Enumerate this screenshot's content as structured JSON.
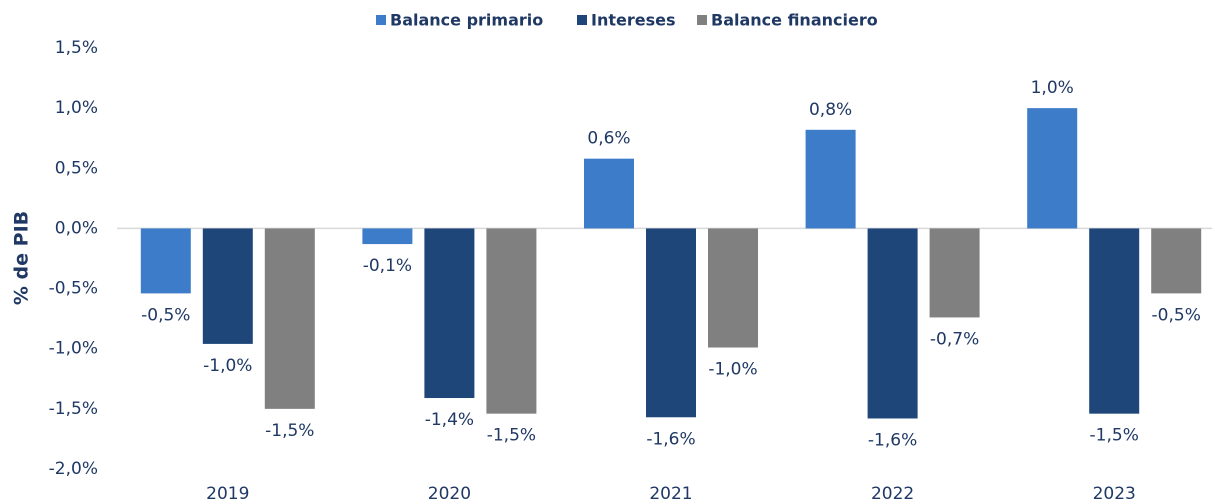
{
  "chart_data": {
    "type": "bar",
    "y_label": "% de PIB",
    "categories": [
      "2019",
      "2020",
      "2021",
      "2022",
      "2023"
    ],
    "series": [
      {
        "name": "Balance primario",
        "color": "#3d7cc9",
        "values": [
          -0.54,
          -0.13,
          0.58,
          0.82,
          1.0
        ],
        "value_labels": [
          "-0,5%",
          "-0,1%",
          "0,6%",
          "0,8%",
          "1,0%"
        ]
      },
      {
        "name": "Intereses",
        "color": "#1f4679",
        "values": [
          -0.96,
          -1.41,
          -1.57,
          -1.58,
          -1.54
        ],
        "value_labels": [
          "-1,0%",
          "-1,4%",
          "-1,6%",
          "-1,6%",
          "-1,5%"
        ]
      },
      {
        "name": "Balance financiero",
        "color": "#808080",
        "values": [
          -1.5,
          -1.54,
          -0.99,
          -0.74,
          -0.54
        ],
        "value_labels": [
          "-1,5%",
          "-1,5%",
          "-1,0%",
          "-0,7%",
          "-0,5%"
        ]
      }
    ],
    "ylim": [
      -2.0,
      1.5
    ],
    "yticks": [
      {
        "value": -2.0,
        "label": "-2,0%"
      },
      {
        "value": -1.5,
        "label": "-1,5%"
      },
      {
        "value": -1.0,
        "label": "-1,0%"
      },
      {
        "value": -0.5,
        "label": "-0,5%"
      },
      {
        "value": 0,
        "label": "0,0%"
      },
      {
        "value": 0.5,
        "label": "0,5%"
      },
      {
        "value": 1.0,
        "label": "1,0%"
      },
      {
        "value": 1.5,
        "label": "1,5%"
      }
    ],
    "legend": "top",
    "grid": false
  }
}
